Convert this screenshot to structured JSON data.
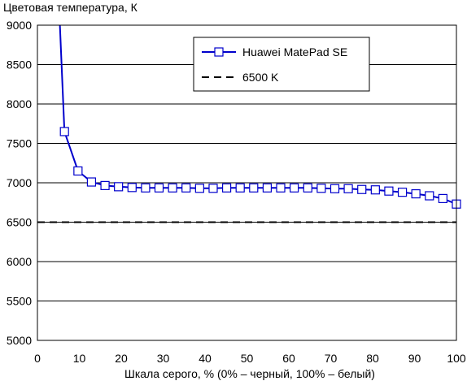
{
  "chart_data": {
    "type": "line",
    "title": "",
    "ylabel": "Цветовая температура, К",
    "xlabel": "Шкала серого, % (0% – черный, 100% – белый)",
    "xlim": [
      0,
      100
    ],
    "ylim": [
      5000,
      9000
    ],
    "xticks": [
      0,
      10,
      20,
      30,
      40,
      50,
      60,
      70,
      80,
      90,
      100
    ],
    "yticks": [
      5000,
      5500,
      6000,
      6500,
      7000,
      7500,
      8000,
      8500,
      9000
    ],
    "grid": "horizontal",
    "legend_position": "top-right",
    "series": [
      {
        "name": "Huawei MatePad SE",
        "color": "#0000cc",
        "marker": "square",
        "x": [
          5.2,
          6.45,
          9.68,
          12.9,
          16.13,
          19.35,
          22.58,
          25.81,
          29.03,
          32.26,
          35.48,
          38.71,
          41.94,
          45.16,
          48.39,
          51.61,
          54.84,
          58.06,
          61.29,
          64.52,
          67.74,
          70.97,
          74.19,
          77.42,
          80.65,
          83.87,
          87.1,
          90.32,
          93.55,
          96.77,
          100
        ],
        "y": [
          9200,
          7650,
          7150,
          7010,
          6965,
          6950,
          6940,
          6935,
          6935,
          6935,
          6935,
          6930,
          6930,
          6935,
          6935,
          6935,
          6935,
          6935,
          6935,
          6935,
          6930,
          6925,
          6925,
          6915,
          6910,
          6895,
          6880,
          6860,
          6835,
          6800,
          6730
        ],
        "markers_from_index": 1
      },
      {
        "name": "6500 K",
        "color": "#000000",
        "dash": true,
        "x": [
          0,
          100
        ],
        "y": [
          6500,
          6500
        ]
      }
    ]
  }
}
